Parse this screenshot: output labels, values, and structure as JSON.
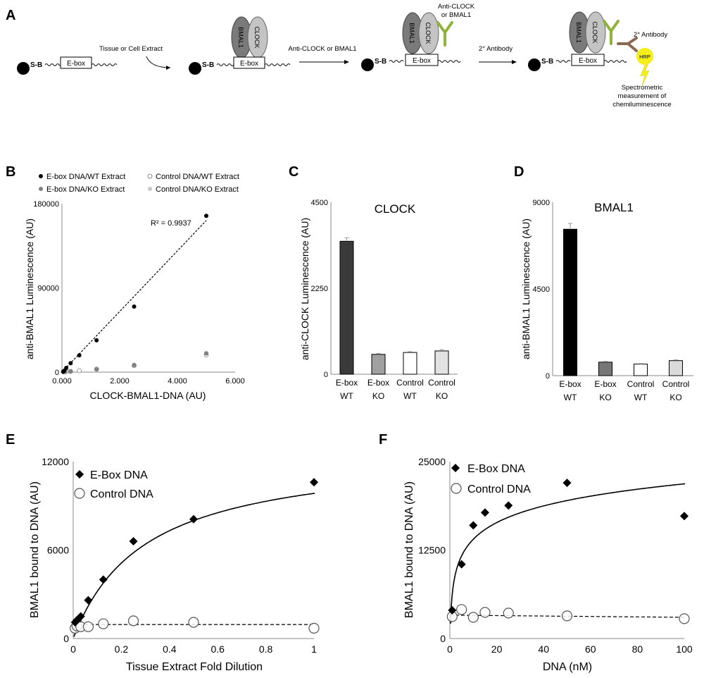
{
  "panel_a": {
    "letter": "A",
    "sb": "S-B",
    "ebox": "E-box",
    "step1": "Tissue or Cell Extract",
    "step2": "Anti-CLOCK or BMAL1",
    "step3_line1": "Anti-CLOCK",
    "step3_line2": "or BMAL1",
    "step4": "2° Antibody",
    "secondary_label": "2° Antibody",
    "hrp": "HRP",
    "readout_line1": "Spectrometric",
    "readout_line2": "measurement of",
    "readout_line3": "chemiluminescence",
    "bmal1": "BMAL1",
    "clock": "CLOCK",
    "colors": {
      "bmal1": "#7a7a7a",
      "clock": "#c4c4c4",
      "antibody": "#8fb33a",
      "secondary": "#8a6a52",
      "hrp": "#f4ee1a"
    }
  },
  "chart_data": [
    {
      "id": "B",
      "type": "scatter",
      "xlabel": "CLOCK-BMAL1-DNA (AU)",
      "ylabel": "anti-BMAL1 Luminescence (AU)",
      "xlim": [
        0,
        6000
      ],
      "ylim": [
        0,
        180000
      ],
      "xticks": [
        "0.000",
        "2.000",
        "4.000",
        "6.000"
      ],
      "xtick_values": [
        0,
        2000,
        4000,
        6000
      ],
      "yticks": [
        "0",
        "90000",
        "180000"
      ],
      "ytick_values": [
        0,
        90000,
        180000
      ],
      "r2_label": "R² = 0.9937",
      "legend": [
        "E-box DNA/WT Extract",
        "E-box DNA/KO Extract",
        "Control DNA/WT Extract",
        "Control DNA/KO Extract"
      ],
      "series": [
        {
          "name": "E-box DNA/WT Extract",
          "color": "#000000",
          "x": [
            40,
            80,
            150,
            300,
            600,
            1200,
            2500,
            5000
          ],
          "y": [
            500,
            1500,
            4500,
            9500,
            18000,
            34000,
            70000,
            167000
          ]
        },
        {
          "name": "E-box DNA/KO Extract",
          "color": "#808080",
          "x": [
            50,
            100,
            300,
            1200,
            2500,
            5000
          ],
          "y": [
            200,
            400,
            800,
            2800,
            7500,
            20000
          ]
        },
        {
          "name": "Control DNA/WT Extract",
          "color": "#ffffff",
          "x": [
            60,
            120,
            300,
            600,
            1200,
            2500,
            5000
          ],
          "y": [
            200,
            400,
            800,
            1500,
            3200,
            7000,
            18500
          ]
        },
        {
          "name": "Control DNA/KO Extract",
          "color": "#c8c8c8",
          "x": [
            80,
            200,
            600,
            1200,
            2500,
            5000
          ],
          "y": [
            300,
            700,
            1500,
            3800,
            8000,
            20500
          ]
        }
      ],
      "trendline": {
        "x": [
          0,
          5000
        ],
        "y": [
          0,
          162000
        ]
      }
    },
    {
      "id": "C",
      "type": "bar",
      "title": "CLOCK",
      "ylabel": "anti-CLOCK Luminescence (AU)",
      "ylim": [
        0,
        4500
      ],
      "yticks": [
        "0",
        "2250",
        "4500"
      ],
      "ytick_values": [
        0,
        2250,
        4500
      ],
      "categories": [
        [
          "E-box",
          "WT"
        ],
        [
          "E-box",
          "KO"
        ],
        [
          "Control",
          "WT"
        ],
        [
          "Control",
          "KO"
        ]
      ],
      "values": [
        3480,
        520,
        570,
        610
      ],
      "errors": [
        90,
        25,
        20,
        35
      ],
      "colors": [
        "#3a3a3a",
        "#a0a0a0",
        "#ffffff",
        "#e2e2e2"
      ]
    },
    {
      "id": "D",
      "type": "bar",
      "title": "BMAL1",
      "ylabel": "anti-BMAL1 Luminescence (AU)",
      "ylim": [
        0,
        9000
      ],
      "yticks": [
        "0",
        "4500",
        "9000"
      ],
      "ytick_values": [
        0,
        4500,
        9000
      ],
      "categories": [
        [
          "E-box",
          "WT"
        ],
        [
          "E-box",
          "KO"
        ],
        [
          "Control",
          "WT"
        ],
        [
          "Control",
          "KO"
        ]
      ],
      "values": [
        7600,
        700,
        600,
        780
      ],
      "errors": [
        300,
        40,
        25,
        40
      ],
      "colors": [
        "#000000",
        "#777777",
        "#ffffff",
        "#dadada"
      ]
    },
    {
      "id": "E",
      "type": "scatter",
      "xlabel": "Tissue Extract Fold Dilution",
      "ylabel": "BMAL1 bound to DNA (AU)",
      "xlim": [
        0,
        1
      ],
      "ylim": [
        0,
        12000
      ],
      "xticks": [
        "0",
        "0.2",
        "0.4",
        "0.6",
        "0.8",
        "1"
      ],
      "xtick_values": [
        0,
        0.2,
        0.4,
        0.6,
        0.8,
        1
      ],
      "yticks": [
        "0",
        "6000",
        "12000"
      ],
      "ytick_values": [
        0,
        6000,
        12000
      ],
      "series": [
        {
          "name": "E-Box DNA",
          "marker": "diamond",
          "x": [
            0.0078,
            0.0156,
            0.03125,
            0.0625,
            0.125,
            0.25,
            0.5,
            1
          ],
          "y": [
            1100,
            1250,
            1500,
            2600,
            4000,
            6600,
            8100,
            10600
          ]
        },
        {
          "name": "Control DNA",
          "marker": "circle",
          "x": [
            0.0078,
            0.0156,
            0.03125,
            0.0625,
            0.125,
            0.25,
            0.5,
            1
          ],
          "y": [
            700,
            850,
            800,
            800,
            1000,
            1200,
            1100,
            700
          ]
        }
      ],
      "fit": {
        "type": "hyperbolic",
        "bmax": 12800,
        "kd": 0.3
      },
      "baseline": 950
    },
    {
      "id": "F",
      "type": "scatter",
      "xlabel": "DNA (nM)",
      "ylabel": "BMAL1 bound to DNA (AU)",
      "xlim": [
        0,
        100
      ],
      "ylim": [
        0,
        25000
      ],
      "xticks": [
        "0",
        "20",
        "40",
        "60",
        "80",
        "100"
      ],
      "xtick_values": [
        0,
        20,
        40,
        60,
        80,
        100
      ],
      "yticks": [
        "0",
        "12500",
        "25000"
      ],
      "ytick_values": [
        0,
        12500,
        25000
      ],
      "series": [
        {
          "name": "E-Box DNA",
          "marker": "diamond",
          "x": [
            1,
            5,
            10,
            15,
            25,
            50,
            100
          ],
          "y": [
            4000,
            10500,
            16000,
            17800,
            18800,
            22000,
            17300
          ]
        },
        {
          "name": "Control DNA",
          "marker": "circle",
          "x": [
            1,
            5,
            10,
            15,
            25,
            50,
            100
          ],
          "y": [
            3100,
            4100,
            3000,
            3700,
            3600,
            3200,
            2800
          ]
        }
      ],
      "fit": {
        "type": "log",
        "a": 6200,
        "b": 3400
      },
      "baseline": [
        3300,
        3000
      ]
    }
  ]
}
